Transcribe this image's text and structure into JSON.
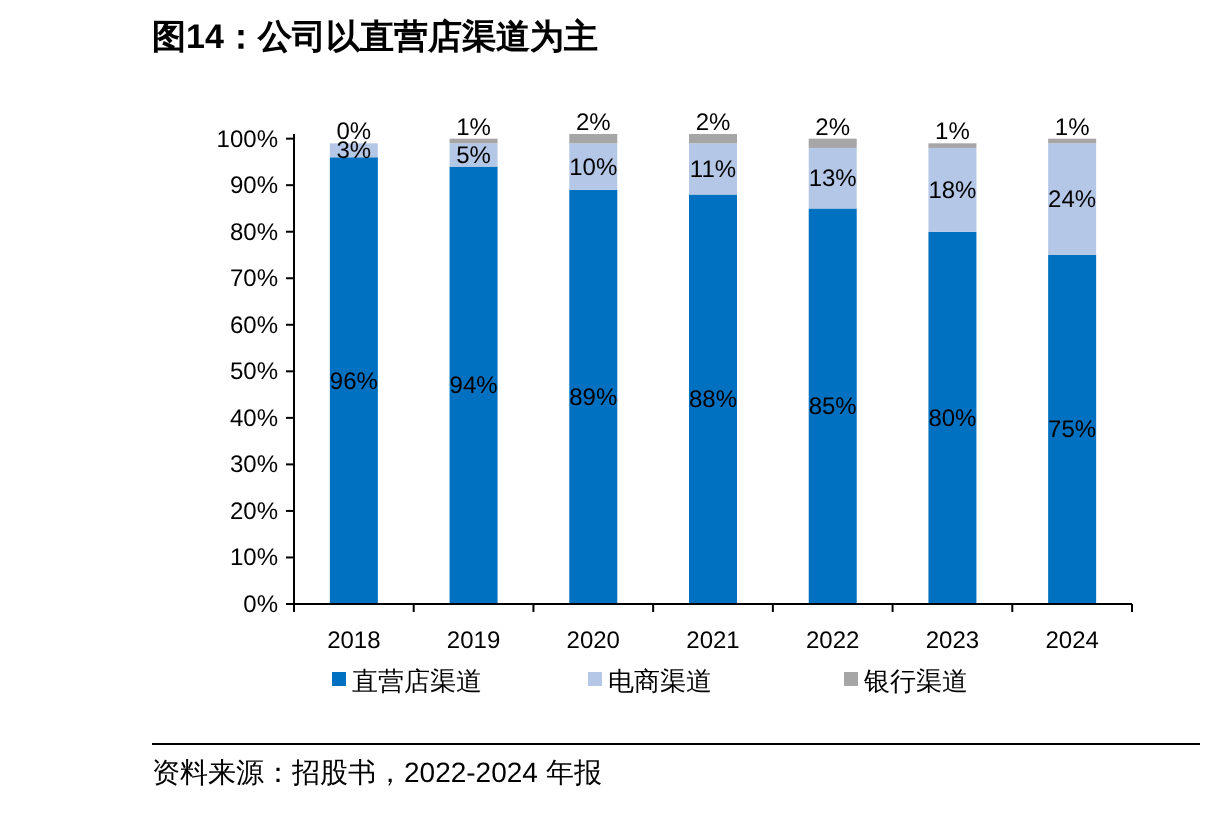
{
  "chart_data": {
    "type": "bar",
    "title": "图14：公司以直营店渠道为主",
    "stacked": true,
    "legend": "bottom",
    "grid": false,
    "categories": [
      "2018",
      "2019",
      "2020",
      "2021",
      "2022",
      "2023",
      "2024"
    ],
    "ylim": [
      0,
      101
    ],
    "yticks": [
      {
        "value": 0,
        "label": "0%"
      },
      {
        "value": 10,
        "label": "10%"
      },
      {
        "value": 20,
        "label": "20%"
      },
      {
        "value": 30,
        "label": "30%"
      },
      {
        "value": 40,
        "label": "40%"
      },
      {
        "value": 50,
        "label": "50%"
      },
      {
        "value": 60,
        "label": "60%"
      },
      {
        "value": 70,
        "label": "70%"
      },
      {
        "value": 80,
        "label": "80%"
      },
      {
        "value": 90,
        "label": "90%"
      },
      {
        "value": 100,
        "label": "100%"
      }
    ],
    "series": [
      {
        "name": "直营店渠道",
        "color": "#0070c0",
        "values": [
          96,
          94,
          89,
          88,
          85,
          80,
          75
        ],
        "value_labels": [
          "96%",
          "94%",
          "89%",
          "88%",
          "85%",
          "80%",
          "75%"
        ]
      },
      {
        "name": "电商渠道",
        "color": "#b4c7e7",
        "values": [
          3,
          5,
          10,
          11,
          13,
          18,
          24
        ],
        "value_labels": [
          "3%",
          "5%",
          "10%",
          "11%",
          "13%",
          "18%",
          "24%"
        ]
      },
      {
        "name": "银行渠道",
        "color": "#a6a6a6",
        "values": [
          0,
          1,
          2,
          2,
          2,
          1,
          1
        ],
        "value_labels": [
          "0%",
          "1%",
          "2%",
          "2%",
          "2%",
          "1%",
          "1%"
        ]
      }
    ],
    "annotations": [
      "资料来源：招股书，2022-2024 年报"
    ]
  }
}
